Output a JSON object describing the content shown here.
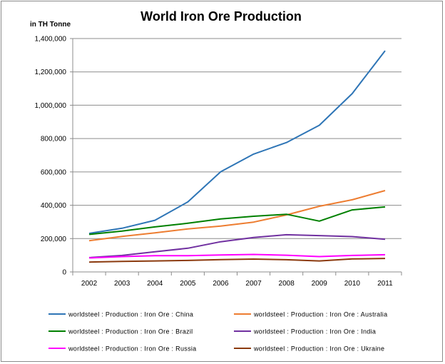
{
  "chart_data": {
    "type": "line",
    "title": "World Iron Ore Production",
    "ylabel": "in TH Tonne",
    "xlabel": "",
    "x": [
      "2002",
      "2003",
      "2004",
      "2005",
      "2006",
      "2007",
      "2008",
      "2009",
      "2010",
      "2011"
    ],
    "ylim": [
      0,
      1400000
    ],
    "yticks": [
      0,
      200000,
      400000,
      600000,
      800000,
      1000000,
      1200000,
      1400000
    ],
    "ytick_labels": [
      "0",
      "200,000",
      "400,000",
      "600,000",
      "800,000",
      "1,000,000",
      "1,200,000",
      "1,400,000"
    ],
    "grid": "horizontal",
    "legend_position": "bottom",
    "series": [
      {
        "name": "worldsteel : Production : Iron Ore : China",
        "color": "#2e75b6",
        "values": [
          231000,
          262000,
          310000,
          420000,
          601000,
          707000,
          776000,
          880000,
          1070000,
          1327000
        ]
      },
      {
        "name": "worldsteel : Production : Iron Ore : Australia",
        "color": "#ed7d31",
        "values": [
          187000,
          213000,
          234000,
          258000,
          275000,
          299000,
          342000,
          394000,
          433000,
          488000
        ]
      },
      {
        "name": "worldsteel : Production : Iron Ore : Brazil",
        "color": "#008000",
        "values": [
          225000,
          245000,
          270000,
          292000,
          318000,
          334000,
          346000,
          305000,
          372000,
          390000
        ]
      },
      {
        "name": "worldsteel : Production : Iron Ore : India",
        "color": "#7030a0",
        "values": [
          86000,
          99000,
          121000,
          142000,
          181000,
          207000,
          223000,
          218000,
          212000,
          196000
        ]
      },
      {
        "name": "worldsteel : Production : Iron Ore : Russia",
        "color": "#ff00ff",
        "values": [
          84000,
          92000,
          97000,
          97000,
          102000,
          105000,
          100000,
          92000,
          99000,
          103000
        ]
      },
      {
        "name": "worldsteel : Production : Iron Ore : Ukraine",
        "color": "#8b3a0e",
        "values": [
          59000,
          63000,
          66000,
          69000,
          74000,
          77000,
          73000,
          66000,
          78000,
          81000
        ]
      }
    ]
  }
}
